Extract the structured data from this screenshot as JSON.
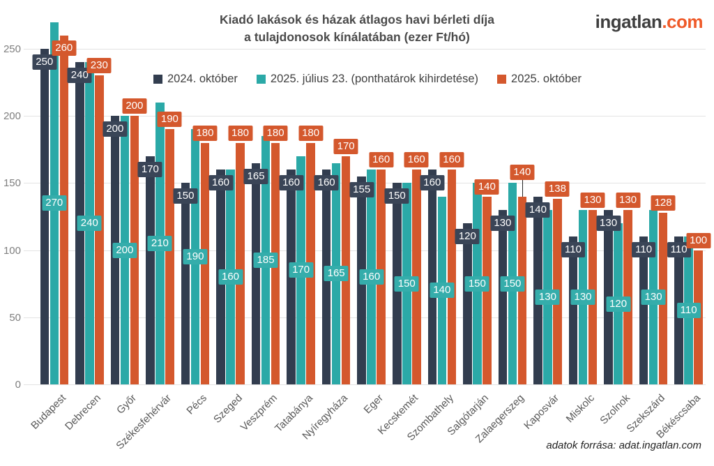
{
  "title": {
    "line1": "Kiadó lakások és házak átlagos havi bérleti díja",
    "line2": "a tulajdonosok kínálatában (ezer Ft/hó)"
  },
  "logo": {
    "brand": "ingatlan",
    "tld": ".com"
  },
  "source_note": "adatok forrása: adat.ingatlan.com",
  "colors": {
    "dark": "#323D4F",
    "teal": "#2BA9A7",
    "orange": "#D4582D",
    "label_dark": "#3A4557",
    "label_teal": "#35ADAB",
    "label_orange": "#D4582D",
    "logo_text": "#3F3F3F",
    "logo_accent": "#EF5A29",
    "grid": "#e3e3e3"
  },
  "chart_data": {
    "type": "bar",
    "title": "Kiadó lakások és házak átlagos havi bérleti díja a tulajdonosok kínálatában (ezer Ft/hó)",
    "categories": [
      "Budapest",
      "Debrecen",
      "Győr",
      "Székesfehérvár",
      "Pécs",
      "Szeged",
      "Veszprém",
      "Tatabánya",
      "Nyíregyháza",
      "Eger",
      "Kecskemét",
      "Szombathely",
      "Salgótarján",
      "Zalaegerszeg",
      "Kaposvár",
      "Miskolc",
      "Szolnok",
      "Szekszárd",
      "Békéscsaba"
    ],
    "series": [
      {
        "name": "2024. október",
        "color_key": "dark",
        "values": [
          250,
          240,
          200,
          170,
          150,
          160,
          165,
          160,
          160,
          155,
          150,
          160,
          120,
          130,
          140,
          110,
          130,
          110,
          110
        ]
      },
      {
        "name": "2025. július 23. (ponthatárok kihirdetése)",
        "color_key": "teal",
        "values": [
          270,
          240,
          200,
          210,
          190,
          160,
          185,
          170,
          165,
          160,
          150,
          140,
          150,
          150,
          130,
          130,
          120,
          130,
          110
        ]
      },
      {
        "name": "2025. október",
        "color_key": "orange",
        "values": [
          260,
          230,
          200,
          190,
          180,
          180,
          180,
          180,
          170,
          160,
          160,
          160,
          140,
          140,
          138,
          130,
          130,
          128,
          100
        ]
      }
    ],
    "ylabel": "",
    "xlabel": "",
    "ylim": [
      0,
      275
    ],
    "yticks": [
      0,
      50,
      100,
      150,
      200,
      250
    ],
    "grid": "horizontal",
    "legend_position": "top",
    "value_labels": "all bars labeled; dark series at bar top, teal series at bar middle, orange series above bar"
  }
}
